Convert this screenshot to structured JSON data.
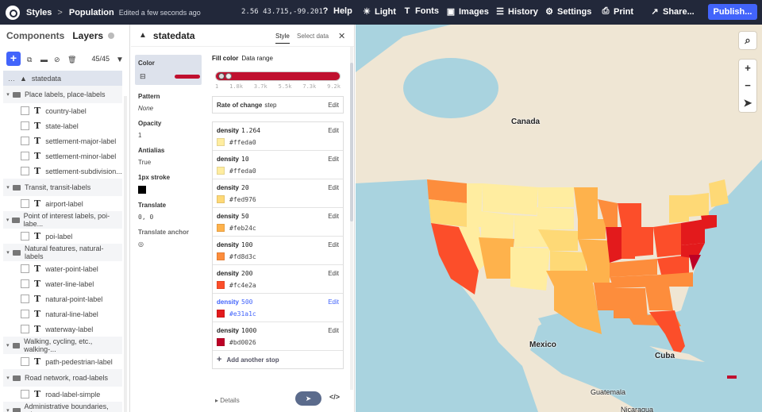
{
  "topbar": {
    "breadcrumb_styles": "Styles",
    "breadcrumb_sep": ">",
    "breadcrumb_name": "Population",
    "edited": "Edited a few seconds ago",
    "coords": "2.56 43.715,-99.201",
    "help": "Help",
    "light": "Light",
    "fonts": "Fonts",
    "images": "Images",
    "history": "History",
    "settings": "Settings",
    "print": "Print",
    "share": "Share...",
    "publish": "Publish..."
  },
  "left": {
    "tab_components": "Components",
    "tab_layers": "Layers",
    "count": "45/45",
    "selected_layer": "statedata",
    "groups": [
      {
        "name": "Place labels, place-labels",
        "layers": [
          "country-label",
          "state-label",
          "settlement-major-label",
          "settlement-minor-label",
          "settlement-subdivision..."
        ]
      },
      {
        "name": "Transit, transit-labels",
        "layers": [
          "airport-label"
        ]
      },
      {
        "name": "Point of interest labels, poi-labe...",
        "layers": [
          "poi-label"
        ]
      },
      {
        "name": "Natural features, natural-labels",
        "layers": [
          "water-point-label",
          "water-line-label",
          "natural-point-label",
          "natural-line-label",
          "waterway-label"
        ]
      },
      {
        "name": "Walking, cycling, etc., walking-...",
        "layers": [
          "path-pedestrian-label"
        ]
      },
      {
        "name": "Road network, road-labels",
        "layers": [
          "road-label-simple"
        ]
      },
      {
        "name": "Administrative boundaries, ad...",
        "layers": []
      }
    ]
  },
  "mid": {
    "title": "statedata",
    "tab_style": "Style",
    "tab_select_data": "Select data",
    "props": {
      "color": "Color",
      "pattern": "Pattern",
      "pattern_val": "None",
      "opacity": "Opacity",
      "opacity_val": "1",
      "antialias": "Antialias",
      "antialias_val": "True",
      "stroke": "1px stroke",
      "translate": "Translate",
      "translate_val": "0, 0",
      "translate_anchor": "Translate anchor"
    },
    "fill_color": "Fill color",
    "data_range": "Data range",
    "ticks": [
      "1",
      "1.8k",
      "3.7k",
      "5.5k",
      "7.3k",
      "9.2k"
    ],
    "rate_label": "Rate of change",
    "rate_val": "step",
    "edit": "Edit",
    "stops": [
      {
        "label": "density",
        "value": "1.264",
        "color": "#ffeda0",
        "color_text": "#ffeda0"
      },
      {
        "label": "density",
        "value": "10",
        "color": "#ffeda0",
        "color_text": "#ffeda0"
      },
      {
        "label": "density",
        "value": "20",
        "color": "#fed976",
        "color_text": "#fed976"
      },
      {
        "label": "density",
        "value": "50",
        "color": "#feb24c",
        "color_text": "#feb24c"
      },
      {
        "label": "density",
        "value": "100",
        "color": "#fd8d3c",
        "color_text": "#fd8d3c"
      },
      {
        "label": "density",
        "value": "200",
        "color": "#fc4e2a",
        "color_text": "#fc4e2a"
      },
      {
        "label": "density",
        "value": "500",
        "color": "#e31a1c",
        "color_text": "#e31a1c"
      },
      {
        "label": "density",
        "value": "1000",
        "color": "#bd0026",
        "color_text": "#bd0026"
      }
    ],
    "add_stop": "Add another stop",
    "details": "Details",
    "code_btn": "</>"
  },
  "map": {
    "labels": {
      "canada": "Canada",
      "mexico": "Mexico",
      "cuba": "Cuba",
      "guatemala": "Guatemala",
      "nicaragua": "Nicaragua"
    }
  }
}
